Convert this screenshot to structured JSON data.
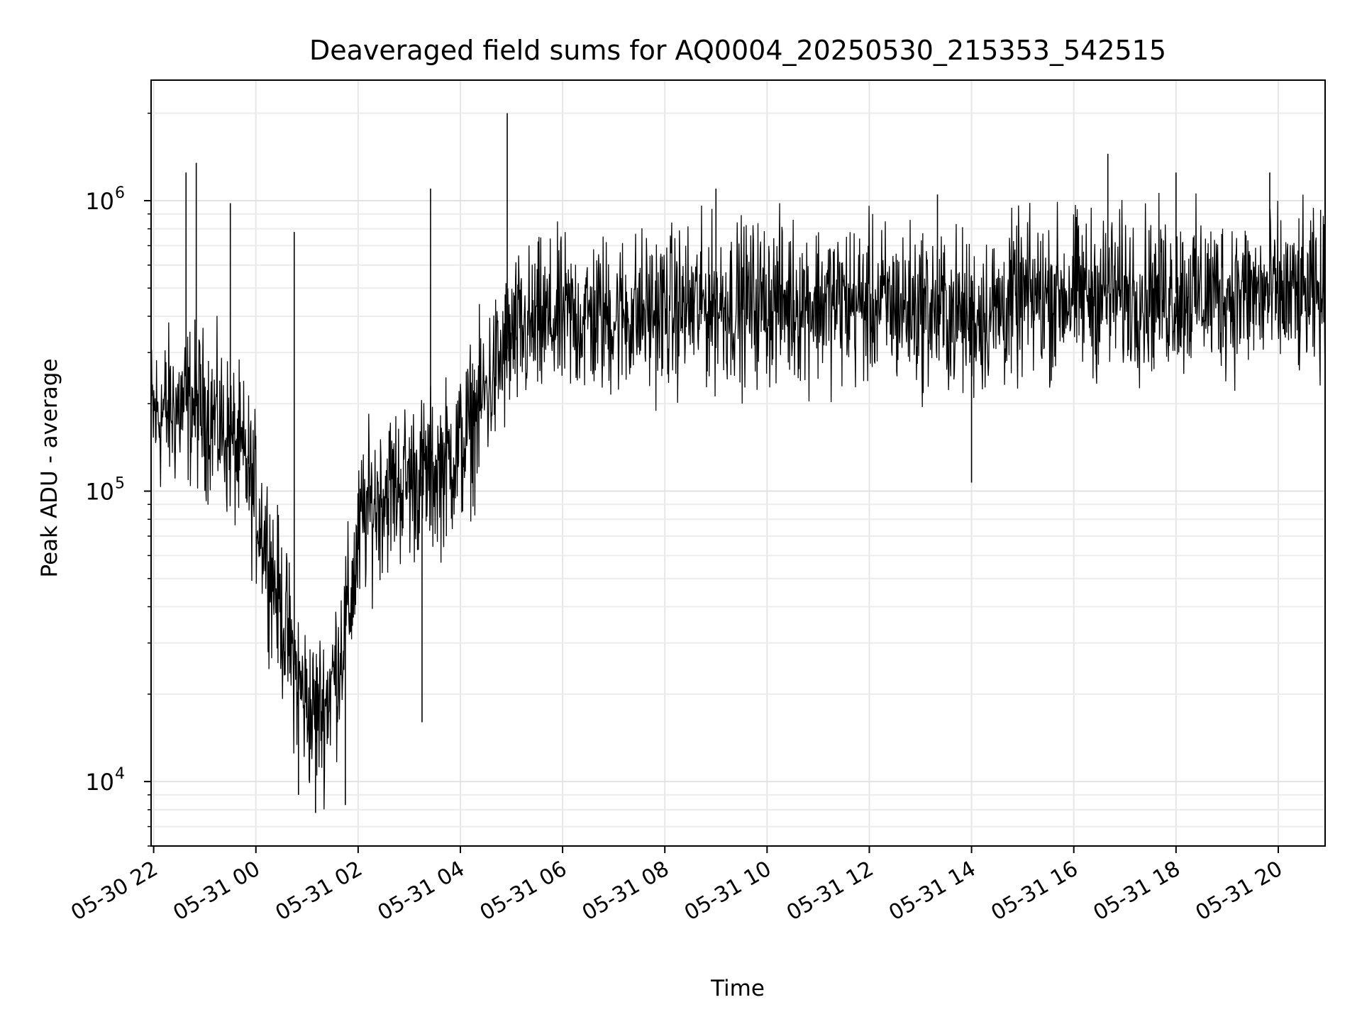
{
  "chart_data": {
    "type": "line",
    "title": "Deaveraged field sums for AQ0004_20250530_215353_542515",
    "xlabel": "Time",
    "ylabel": "Peak ADU - average",
    "yscale": "log",
    "ylim": [
      6000,
      2600000
    ],
    "xlim": [
      "2025-05-30 21:57",
      "2025-05-31 20:55"
    ],
    "grid": true,
    "line_color": "#000000",
    "x_ticks": [
      {
        "label": "05-30 22",
        "time": "2025-05-30 22:00"
      },
      {
        "label": "05-31 00",
        "time": "2025-05-31 00:00"
      },
      {
        "label": "05-31 02",
        "time": "2025-05-31 02:00"
      },
      {
        "label": "05-31 04",
        "time": "2025-05-31 04:00"
      },
      {
        "label": "05-31 06",
        "time": "2025-05-31 06:00"
      },
      {
        "label": "05-31 08",
        "time": "2025-05-31 08:00"
      },
      {
        "label": "05-31 10",
        "time": "2025-05-31 10:00"
      },
      {
        "label": "05-31 12",
        "time": "2025-05-31 12:00"
      },
      {
        "label": "05-31 14",
        "time": "2025-05-31 14:00"
      },
      {
        "label": "05-31 16",
        "time": "2025-05-31 16:00"
      },
      {
        "label": "05-31 18",
        "time": "2025-05-31 18:00"
      },
      {
        "label": "05-31 20",
        "time": "2025-05-31 20:00"
      }
    ],
    "y_ticks": [
      {
        "base": "10",
        "exp": "4",
        "value": 10000
      },
      {
        "base": "10",
        "exp": "5",
        "value": 100000
      },
      {
        "base": "10",
        "exp": "6",
        "value": 1000000
      }
    ],
    "series": [
      {
        "noise_band_factor": 4.5,
        "points": [
          [
            "2025-05-30 21:57",
            180000
          ],
          [
            "2025-05-30 22:20",
            190000
          ],
          [
            "2025-05-30 22:45",
            200000
          ],
          [
            "2025-05-30 23:10",
            180000
          ],
          [
            "2025-05-30 23:30",
            150000
          ],
          [
            "2025-05-30 23:50",
            120000
          ],
          [
            "2025-05-31 00:10",
            70000
          ],
          [
            "2025-05-31 00:30",
            38000
          ],
          [
            "2025-05-31 00:50",
            22000
          ],
          [
            "2025-05-31 01:05",
            17000
          ],
          [
            "2025-05-31 01:20",
            18000
          ],
          [
            "2025-05-31 01:35",
            25000
          ],
          [
            "2025-05-31 01:50",
            40000
          ],
          [
            "2025-05-31 02:05",
            80000
          ],
          [
            "2025-05-31 02:30",
            100000
          ],
          [
            "2025-05-31 03:00",
            110000
          ],
          [
            "2025-05-31 03:30",
            115000
          ],
          [
            "2025-05-31 04:00",
            140000
          ],
          [
            "2025-05-31 04:30",
            220000
          ],
          [
            "2025-05-31 05:00",
            330000
          ],
          [
            "2025-05-31 05:30",
            370000
          ],
          [
            "2025-05-31 06:00",
            390000
          ],
          [
            "2025-05-31 07:00",
            400000
          ],
          [
            "2025-05-31 08:00",
            420000
          ],
          [
            "2025-05-31 09:00",
            440000
          ],
          [
            "2025-05-31 10:00",
            450000
          ],
          [
            "2025-05-31 11:00",
            450000
          ],
          [
            "2025-05-31 12:00",
            440000
          ],
          [
            "2025-05-31 13:00",
            430000
          ],
          [
            "2025-05-31 14:00",
            400000
          ],
          [
            "2025-05-31 14:30",
            420000
          ],
          [
            "2025-05-31 15:00",
            460000
          ],
          [
            "2025-05-31 16:00",
            480000
          ],
          [
            "2025-05-31 17:00",
            480000
          ],
          [
            "2025-05-31 18:00",
            480000
          ],
          [
            "2025-05-31 19:00",
            480000
          ],
          [
            "2025-05-31 20:00",
            470000
          ],
          [
            "2025-05-31 20:55",
            460000
          ]
        ],
        "spikes": [
          [
            "2025-05-30 22:38",
            1250000
          ],
          [
            "2025-05-30 22:50",
            1350000
          ],
          [
            "2025-05-30 23:30",
            980000
          ],
          [
            "2025-05-31 00:45",
            780000
          ],
          [
            "2025-05-31 00:50",
            9000
          ],
          [
            "2025-05-31 01:10",
            7800
          ],
          [
            "2025-05-31 01:45",
            8300
          ],
          [
            "2025-05-31 03:15",
            16000
          ],
          [
            "2025-05-31 03:25",
            1100000
          ],
          [
            "2025-05-31 04:55",
            2000000
          ],
          [
            "2025-05-31 09:00",
            1100000
          ],
          [
            "2025-05-31 13:20",
            1050000
          ],
          [
            "2025-05-31 14:00",
            107000
          ],
          [
            "2025-05-31 16:40",
            1450000
          ],
          [
            "2025-05-31 18:00",
            1250000
          ],
          [
            "2025-05-31 19:50",
            1250000
          ]
        ]
      }
    ]
  }
}
